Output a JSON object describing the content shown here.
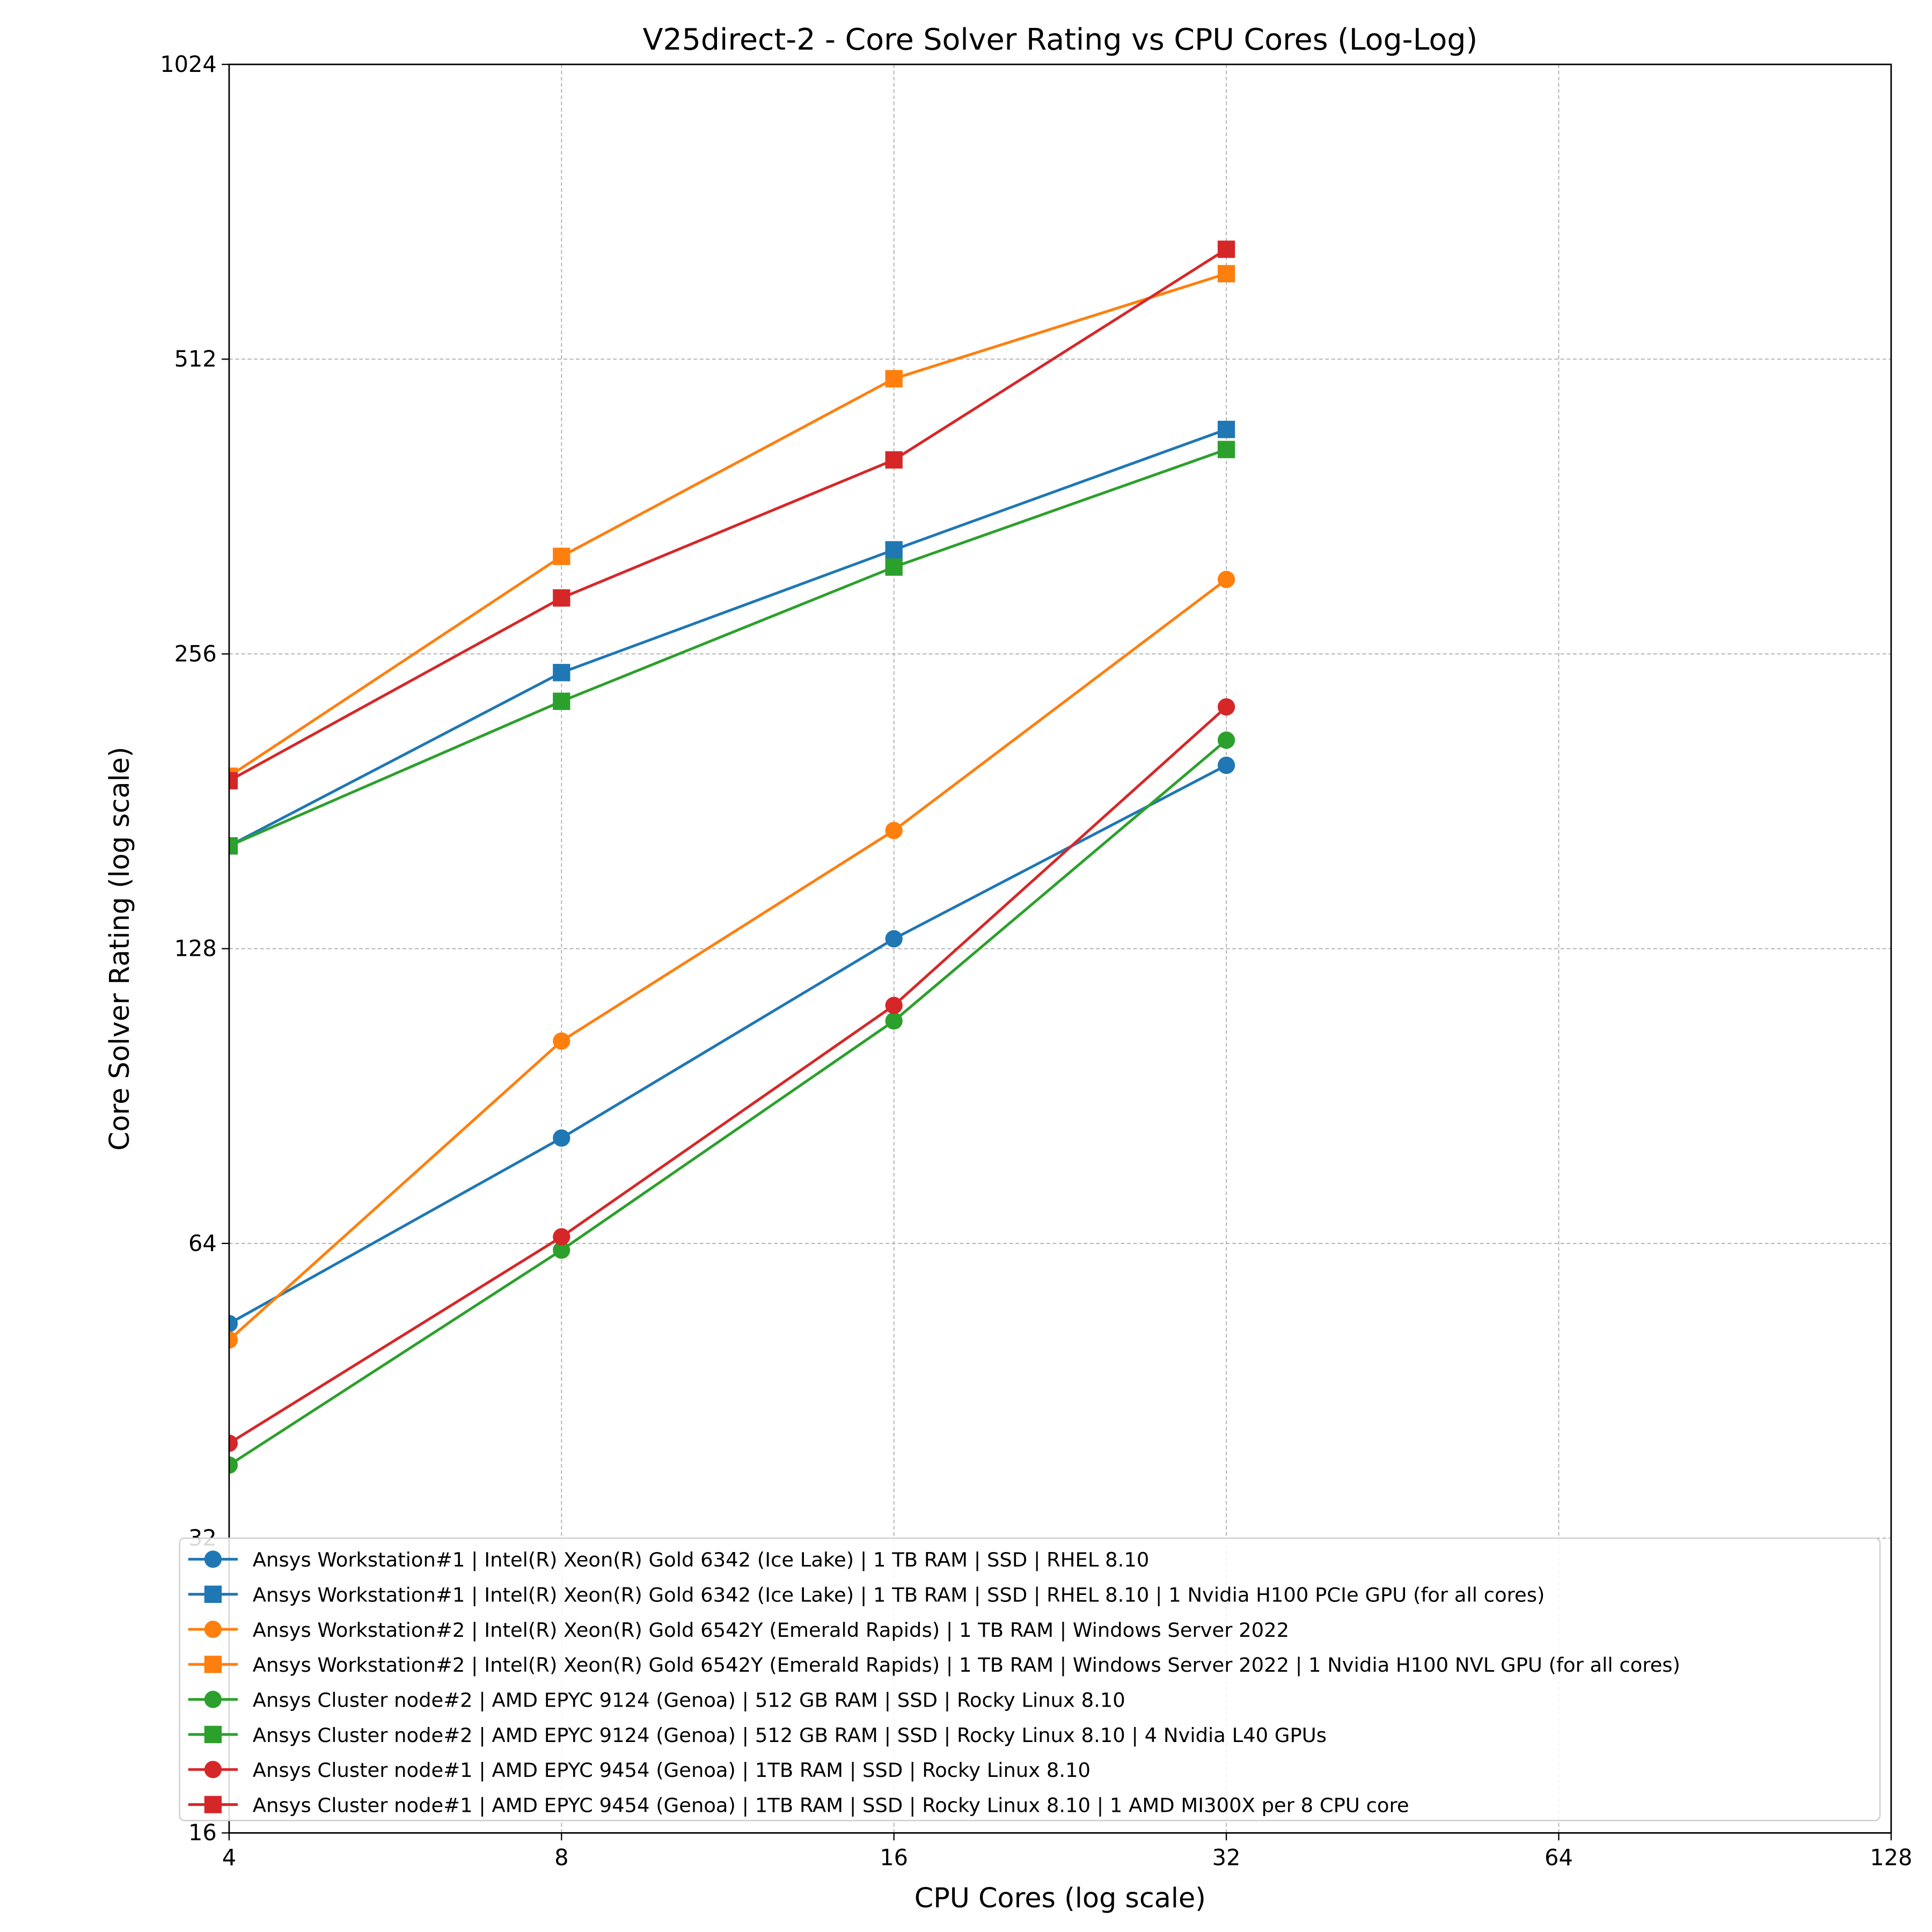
{
  "chart_data": {
    "type": "line",
    "title": "V25direct-2 - Core Solver Rating vs CPU Cores (Log-Log)",
    "xlabel": "CPU Cores (log scale)",
    "ylabel": "Core Solver Rating (log scale)",
    "xscale": "log2",
    "yscale": "log2",
    "xlim": [
      4,
      128
    ],
    "ylim": [
      16,
      1024
    ],
    "xticks": [
      "4",
      "8",
      "16",
      "32",
      "64",
      "128"
    ],
    "yticks": [
      "16",
      "32",
      "64",
      "128",
      "256",
      "512",
      "1024"
    ],
    "grid": true,
    "legend_position": "bottom",
    "x": [
      4,
      8,
      16,
      32
    ],
    "series": [
      {
        "name": "Ansys Workstation#1 | Intel(R) Xeon(R) Gold 6342 (Ice Lake) | 1 TB RAM | SSD | RHEL 8.10",
        "color": "#1f77b4",
        "marker": "circle",
        "values": [
          53,
          82,
          131,
          197
        ]
      },
      {
        "name": "Ansys Workstation#1 | Intel(R) Xeon(R) Gold 6342 (Ice Lake) | 1 TB RAM | SSD | RHEL 8.10 | 1 Nvidia H100 PCIe GPU (for all cores)",
        "color": "#1f77b4",
        "marker": "square",
        "values": [
          163,
          245,
          327,
          434
        ]
      },
      {
        "name": "Ansys Workstation#2 | Intel(R) Xeon(R) Gold 6542Y (Emerald Rapids) | 1 TB RAM | Windows Server 2022",
        "color": "#ff7f0e",
        "marker": "circle",
        "values": [
          51,
          103,
          169,
          305
        ]
      },
      {
        "name": "Ansys Workstation#2 | Intel(R) Xeon(R) Gold 6542Y (Emerald Rapids) | 1 TB RAM | Windows Server 2022 | 1 Nvidia H100 NVL GPU (for all cores)",
        "color": "#ff7f0e",
        "marker": "square",
        "values": [
          192,
          322,
          489,
          626
        ]
      },
      {
        "name": "Ansys Cluster node#2 | AMD EPYC 9124 (Genoa) | 512 GB RAM | SSD | Rocky Linux 8.10",
        "color": "#2ca02c",
        "marker": "circle",
        "values": [
          38,
          63,
          108,
          209
        ]
      },
      {
        "name": "Ansys Cluster node#2 | AMD EPYC 9124 (Genoa) | 512 GB RAM | SSD | Rocky Linux 8.10 | 4 Nvidia L40 GPUs",
        "color": "#2ca02c",
        "marker": "square",
        "values": [
          163,
          229,
          314,
          414
        ]
      },
      {
        "name": "Ansys Cluster node#1 | AMD EPYC 9454 (Genoa) | 1TB  RAM | SSD | Rocky Linux 8.10",
        "color": "#d62728",
        "marker": "circle",
        "values": [
          40,
          65,
          112,
          226
        ]
      },
      {
        "name": "Ansys Cluster node#1 | AMD EPYC 9454 (Genoa) | 1TB  RAM | SSD | Rocky Linux 8.10 | 1 AMD MI300X per 8 CPU core",
        "color": "#d62728",
        "marker": "square",
        "values": [
          190,
          292,
          404,
          663
        ]
      }
    ]
  }
}
